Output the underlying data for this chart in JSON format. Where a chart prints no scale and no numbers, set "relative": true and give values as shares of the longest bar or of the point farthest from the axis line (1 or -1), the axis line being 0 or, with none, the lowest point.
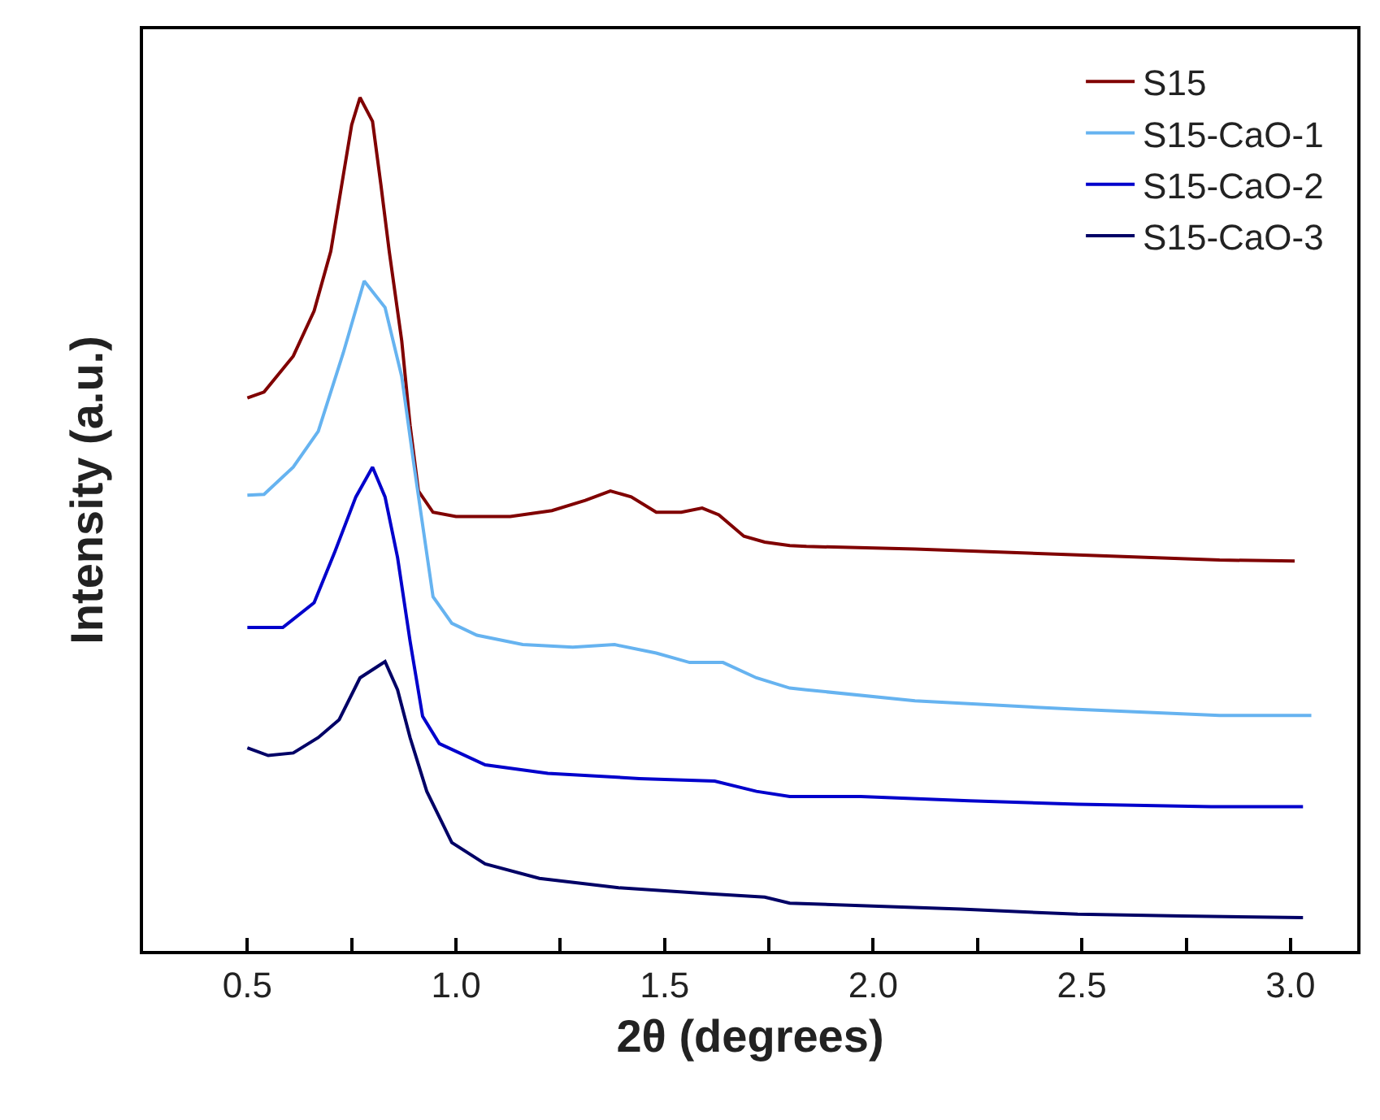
{
  "chart_data": {
    "type": "line",
    "relative": true,
    "xlabel": "2θ (degrees)",
    "ylabel": "Intensity (a.u.)",
    "xlim": [
      0.25,
      3.16
    ],
    "xticks": [
      {
        "value": 0.5,
        "label": "0.5"
      },
      {
        "value": 0.75,
        "label": null
      },
      {
        "value": 1.0,
        "label": "1.0"
      },
      {
        "value": 1.25,
        "label": null
      },
      {
        "value": 1.5,
        "label": "1.5"
      },
      {
        "value": 1.75,
        "label": null
      },
      {
        "value": 2.0,
        "label": "2.0"
      },
      {
        "value": 2.25,
        "label": null
      },
      {
        "value": 2.5,
        "label": "2.5"
      },
      {
        "value": 2.75,
        "label": null
      },
      {
        "value": 3.0,
        "label": "3.0"
      }
    ],
    "tick_labels": "x",
    "legend": "top right",
    "line_style": "solid",
    "series": [
      {
        "name": "S15",
        "color": "#800000",
        "x": [
          0.5,
          0.54,
          0.61,
          0.66,
          0.7,
          0.73,
          0.75,
          0.77,
          0.8,
          0.82,
          0.84,
          0.87,
          0.89,
          0.91,
          0.945,
          1.0,
          1.13,
          1.23,
          1.31,
          1.37,
          1.42,
          1.48,
          1.54,
          1.59,
          1.63,
          1.69,
          1.74,
          1.8,
          1.84,
          2.1,
          2.49,
          2.83,
          3.01
        ],
        "values": [
          0.648,
          0.655,
          0.697,
          0.75,
          0.82,
          0.909,
          0.968,
          1.0,
          0.972,
          0.898,
          0.82,
          0.715,
          0.616,
          0.539,
          0.514,
          0.509,
          0.509,
          0.516,
          0.528,
          0.539,
          0.532,
          0.514,
          0.514,
          0.519,
          0.511,
          0.486,
          0.479,
          0.475,
          0.474,
          0.471,
          0.464,
          0.458,
          0.457
        ]
      },
      {
        "name": "S15-CaO-1",
        "color": "#66b3f0",
        "x": [
          0.5,
          0.54,
          0.61,
          0.67,
          0.73,
          0.78,
          0.83,
          0.87,
          0.9,
          0.945,
          0.99,
          1.05,
          1.16,
          1.28,
          1.38,
          1.48,
          1.56,
          1.64,
          1.72,
          1.8,
          1.84,
          2.1,
          2.49,
          2.83,
          3.05
        ],
        "values": [
          0.534,
          0.535,
          0.567,
          0.609,
          0.701,
          0.785,
          0.754,
          0.673,
          0.567,
          0.415,
          0.384,
          0.37,
          0.359,
          0.356,
          0.359,
          0.349,
          0.338,
          0.338,
          0.32,
          0.308,
          0.306,
          0.293,
          0.283,
          0.276,
          0.276
        ]
      },
      {
        "name": "S15-CaO-2",
        "color": "#0000cc",
        "x": [
          0.5,
          0.585,
          0.66,
          0.71,
          0.76,
          0.8,
          0.83,
          0.86,
          0.89,
          0.92,
          0.96,
          1.07,
          1.22,
          1.44,
          1.62,
          1.72,
          1.8,
          1.97,
          2.23,
          2.49,
          2.81,
          3.03
        ],
        "values": [
          0.379,
          0.379,
          0.408,
          0.468,
          0.532,
          0.567,
          0.532,
          0.461,
          0.363,
          0.275,
          0.243,
          0.218,
          0.208,
          0.202,
          0.199,
          0.187,
          0.181,
          0.181,
          0.176,
          0.172,
          0.169,
          0.169
        ]
      },
      {
        "name": "S15-CaO-3",
        "color": "#000066",
        "x": [
          0.5,
          0.55,
          0.61,
          0.67,
          0.72,
          0.77,
          0.83,
          0.86,
          0.89,
          0.93,
          0.99,
          1.07,
          1.2,
          1.39,
          1.61,
          1.74,
          1.8,
          1.97,
          2.21,
          2.49,
          2.74,
          3.03
        ],
        "values": [
          0.238,
          0.229,
          0.232,
          0.25,
          0.271,
          0.32,
          0.339,
          0.306,
          0.25,
          0.187,
          0.127,
          0.102,
          0.085,
          0.074,
          0.067,
          0.063,
          0.056,
          0.053,
          0.049,
          0.043,
          0.041,
          0.039
        ]
      }
    ]
  }
}
